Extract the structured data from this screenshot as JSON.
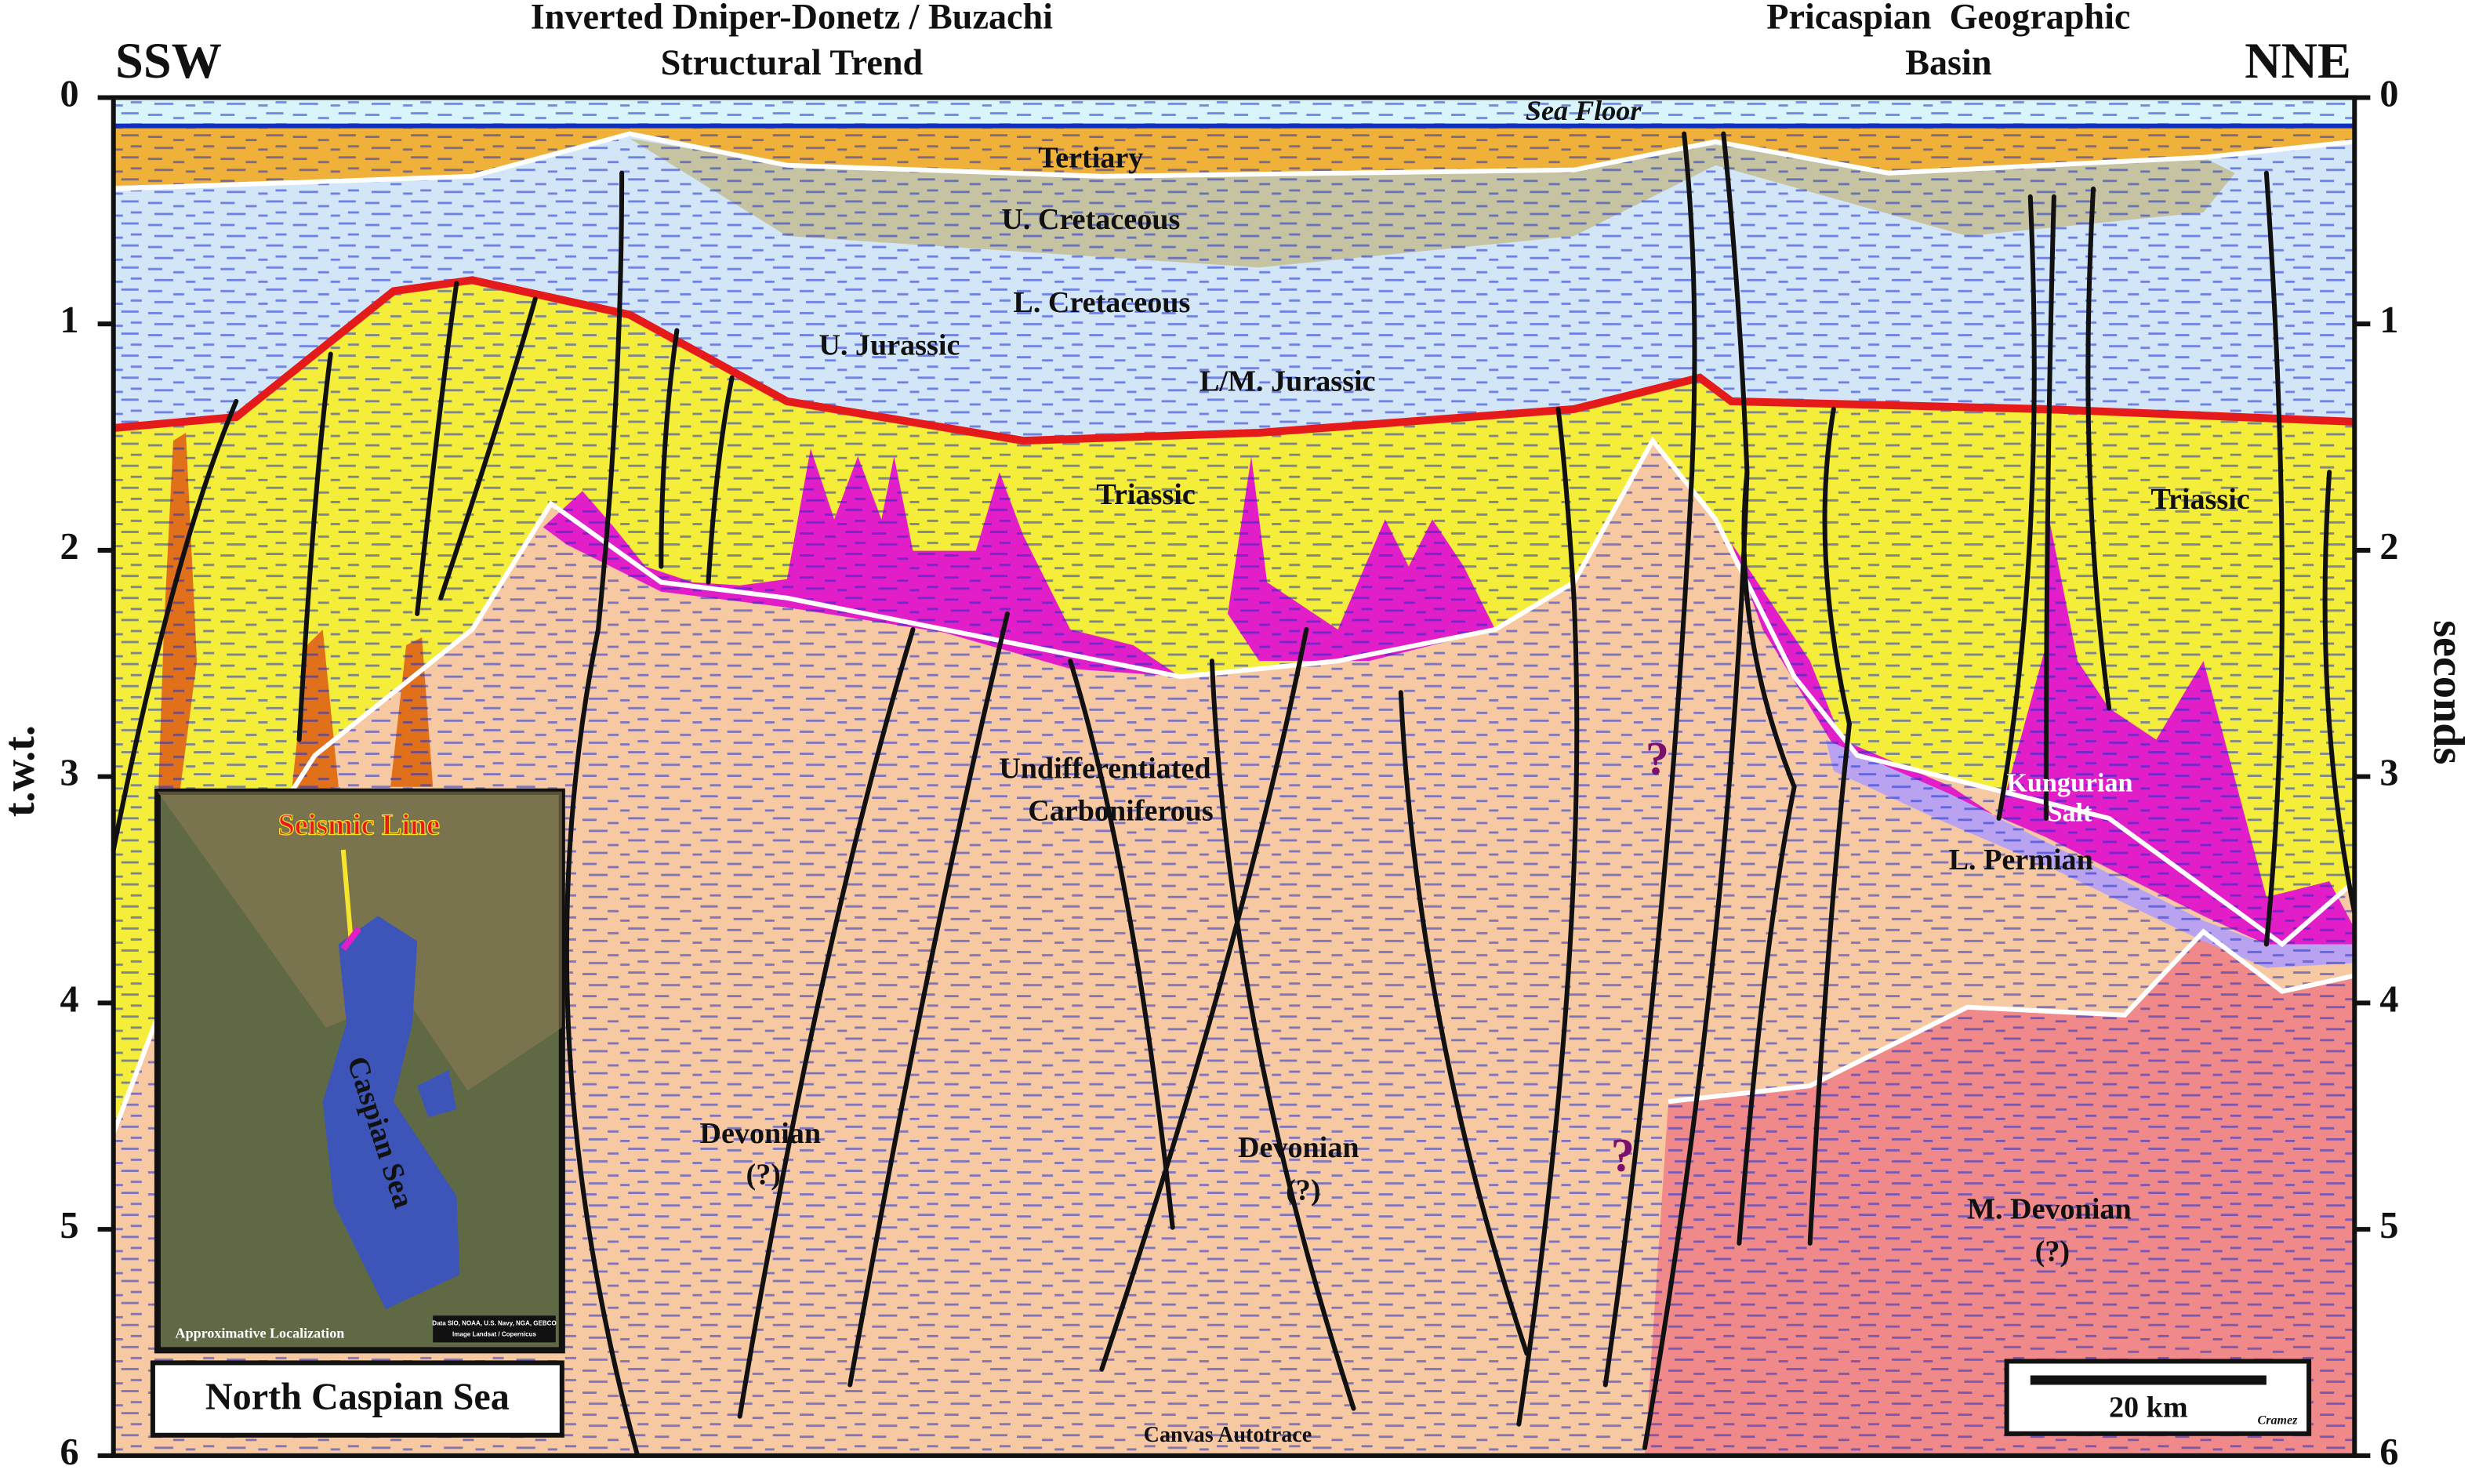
{
  "header": {
    "left_direction": "SSW",
    "right_direction": "NNE",
    "left_title": [
      "Inverted Dniper-Donetz / Buzachi",
      "Structural Trend"
    ],
    "right_title": [
      "Pricaspian  Geographic",
      "Basin"
    ]
  },
  "axes": {
    "left_label": "t.w.t.",
    "right_label": "seconds",
    "ticks": [
      0,
      1,
      2,
      3,
      4,
      5,
      6
    ]
  },
  "section": {
    "sea_floor": "Sea Floor",
    "tertiary": "Tertiary",
    "u_cretaceous": "U. Cretaceous",
    "l_cretaceous": "L. Cretaceous",
    "u_jurassic": "U. Jurassic",
    "lm_jurassic": "L/M. Jurassic",
    "triassic_left": "Triassic",
    "triassic_right": "Triassic",
    "carboniferous": [
      "Undifferentiated",
      "Carboniferous"
    ],
    "devonian_left": [
      "Devonian",
      "(?)"
    ],
    "devonian_center": [
      "Devonian",
      "(?)"
    ],
    "m_devonian": [
      "M. Devonian",
      "(?)"
    ],
    "kungurian_salt": [
      "Kungurian",
      "Salt"
    ],
    "l_permian": "L. Permian",
    "question_upper": "?",
    "question_lower": "?",
    "credit": "Canvas Autotrace"
  },
  "inset": {
    "seismic_line": "Seismic Line",
    "sea": "Caspian Sea",
    "note": "Approximative Localization",
    "attribution": [
      "Data SIO, NOAA, U.S. Navy, NGA, GEBCO",
      "Image Landsat / Copernicus"
    ],
    "caption": "North Caspian Sea"
  },
  "scale_bar": {
    "label": "20 km",
    "author": "Cramez"
  }
}
